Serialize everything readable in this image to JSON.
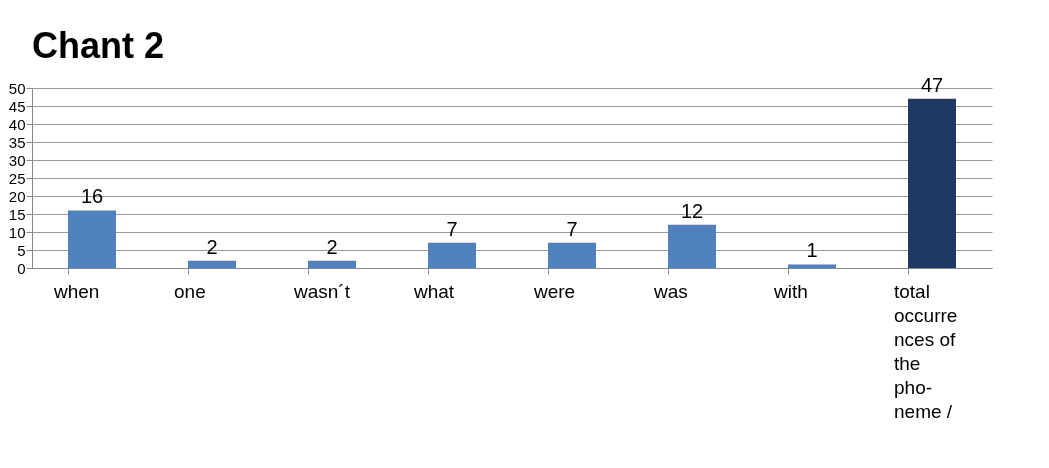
{
  "chart_data": {
    "type": "bar",
    "title": "Chant 2",
    "categories": [
      "when",
      "one",
      "wasn´t",
      "what",
      "were",
      "was",
      "with",
      "total occurrences of the pho-neme /"
    ],
    "values": [
      16,
      2,
      2,
      7,
      7,
      12,
      1,
      47
    ],
    "colors": [
      "#4f81bd",
      "#4f81bd",
      "#4f81bd",
      "#4f81bd",
      "#4f81bd",
      "#4f81bd",
      "#4f81bd",
      "#1f3864"
    ],
    "ylim": [
      0,
      50
    ],
    "yticks": [
      0,
      5,
      10,
      15,
      20,
      25,
      30,
      35,
      40,
      45,
      50
    ],
    "grid": "y",
    "data_labels": true
  }
}
